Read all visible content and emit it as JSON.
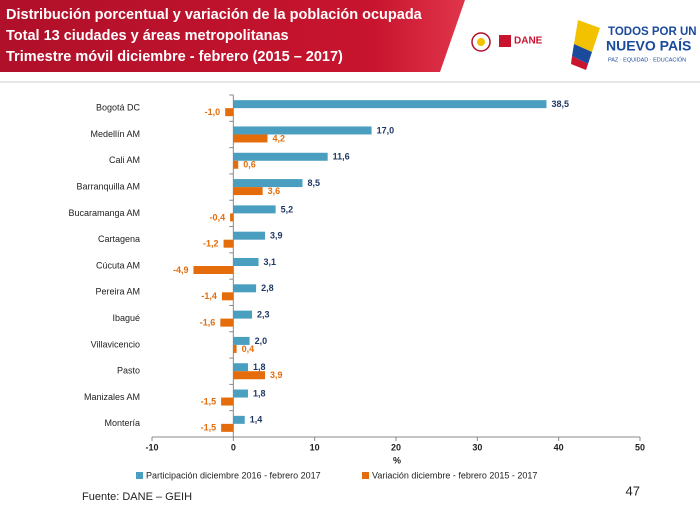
{
  "chart_data": {
    "type": "bar",
    "orientation": "horizontal",
    "title": "Distribución porcentual y variación de la población ocupada",
    "subtitle": [
      "Total 13 ciudades y áreas metropolitanas",
      "Trimestre móvil diciembre - febrero (2015 – 2017)"
    ],
    "categories": [
      "Bogotá DC",
      "Medellín AM",
      "Cali AM",
      "Barranquilla AM",
      "Bucaramanga AM",
      "Cartagena",
      "Cúcuta AM",
      "Pereira AM",
      "Ibagué",
      "Villavicencio",
      "Pasto",
      "Manizales AM",
      "Montería"
    ],
    "series": [
      {
        "name": "Participación diciembre 2016 - febrero 2017",
        "color": "#4a9fc0",
        "values": [
          38.5,
          17.0,
          11.6,
          8.5,
          5.2,
          3.9,
          3.1,
          2.8,
          2.3,
          2.0,
          1.8,
          1.8,
          1.4
        ],
        "value_labels": [
          "38,5",
          "17,0",
          "11,6",
          "8,5",
          "5,2",
          "3,9",
          "3,1",
          "2,8",
          "2,3",
          "2,0",
          "1,8",
          "1,8",
          "1,4"
        ],
        "label_color": "#1f3864"
      },
      {
        "name": "Variación diciembre - febrero 2015 - 2017",
        "color": "#e46c0a",
        "values": [
          -1.0,
          4.2,
          0.6,
          3.6,
          -0.4,
          -1.2,
          -4.9,
          -1.4,
          -1.6,
          0.4,
          3.9,
          -1.5,
          -1.5
        ],
        "value_labels": [
          "-1,0",
          "4,2",
          "0,6",
          "3,6",
          "-0,4",
          "-1,2",
          "-4,9",
          "-1,4",
          "-1,6",
          "0,4",
          "3,9",
          "-1,5",
          "-1,5"
        ],
        "label_color": "#e46c0a"
      }
    ],
    "xlim": [
      -10,
      50
    ],
    "xticks": [
      -10,
      0,
      10,
      20,
      30,
      40,
      50
    ],
    "xlabel": "%",
    "legend": "bottom"
  },
  "logos": {
    "dane": "DANE",
    "slogan": [
      "TODOS POR UN",
      "NUEVO PAÍS"
    ],
    "motto": "PAZ · EQUIDAD · EDUCACIÓN"
  },
  "source": "Fuente: DANE – GEIH",
  "page_number": "47"
}
